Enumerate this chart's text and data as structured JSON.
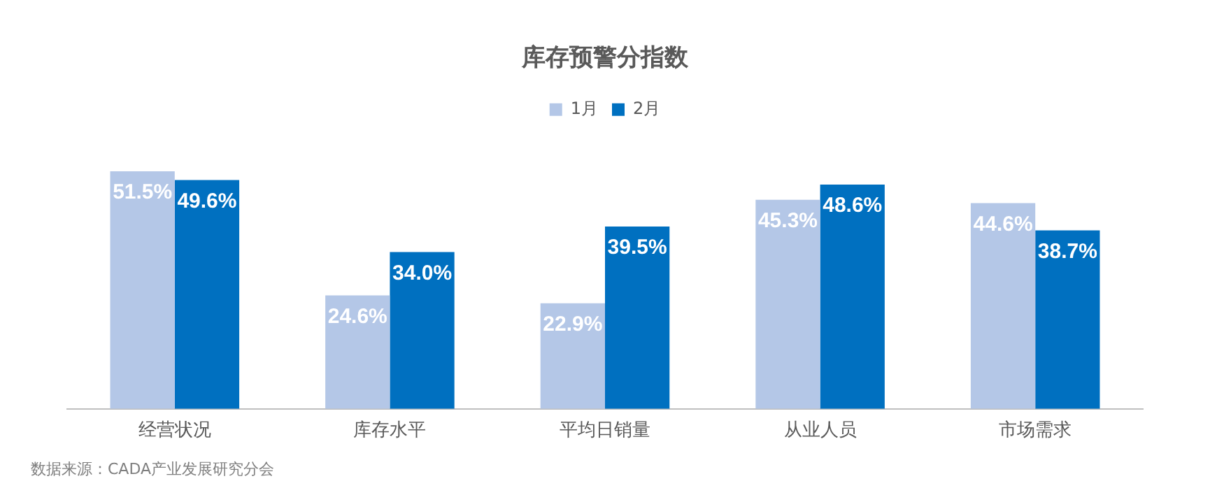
{
  "chart_data": {
    "type": "bar",
    "title": "库存预警分指数",
    "categories": [
      "经营状况",
      "库存水平",
      "平均日销量",
      "从业人员",
      "市场需求"
    ],
    "series": [
      {
        "name": "1月",
        "color": "#b4c7e7",
        "values": [
          51.5,
          24.6,
          22.9,
          45.3,
          44.6
        ],
        "value_labels": [
          "51.5%",
          "24.6%",
          "22.9%",
          "45.3%",
          "44.6%"
        ]
      },
      {
        "name": "2月",
        "color": "#0070c0",
        "values": [
          49.6,
          34.0,
          39.5,
          48.6,
          38.7
        ],
        "value_labels": [
          "49.6%",
          "34.0%",
          "39.5%",
          "48.6%",
          "38.7%"
        ]
      }
    ],
    "legend": "top",
    "grid": false,
    "annotations": [
      "数据来源：CADA产业发展研究分会"
    ]
  }
}
